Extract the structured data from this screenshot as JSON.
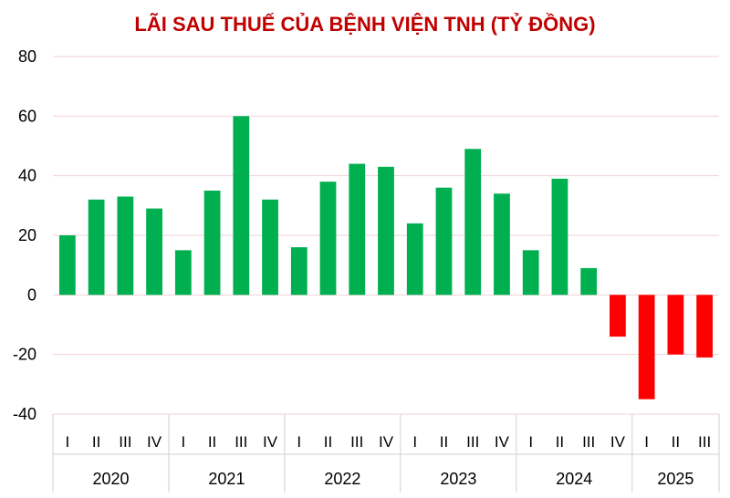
{
  "chart_data": {
    "type": "bar",
    "title": "LÃI SAU THUẾ CỦA BỆNH VIỆN TNH (TỶ ĐỒNG)",
    "categories": [
      {
        "year": "2020",
        "quarter": "I"
      },
      {
        "year": "2020",
        "quarter": "II"
      },
      {
        "year": "2020",
        "quarter": "III"
      },
      {
        "year": "2020",
        "quarter": "IV"
      },
      {
        "year": "2021",
        "quarter": "I"
      },
      {
        "year": "2021",
        "quarter": "II"
      },
      {
        "year": "2021",
        "quarter": "III"
      },
      {
        "year": "2021",
        "quarter": "IV"
      },
      {
        "year": "2022",
        "quarter": "I"
      },
      {
        "year": "2022",
        "quarter": "II"
      },
      {
        "year": "2022",
        "quarter": "III"
      },
      {
        "year": "2022",
        "quarter": "IV"
      },
      {
        "year": "2023",
        "quarter": "I"
      },
      {
        "year": "2023",
        "quarter": "II"
      },
      {
        "year": "2023",
        "quarter": "III"
      },
      {
        "year": "2023",
        "quarter": "IV"
      },
      {
        "year": "2024",
        "quarter": "I"
      },
      {
        "year": "2024",
        "quarter": "II"
      },
      {
        "year": "2024",
        "quarter": "III"
      },
      {
        "year": "2024",
        "quarter": "IV"
      },
      {
        "year": "2025",
        "quarter": "I"
      },
      {
        "year": "2025",
        "quarter": "II"
      },
      {
        "year": "2025",
        "quarter": "III"
      }
    ],
    "years": [
      "2020",
      "2021",
      "2022",
      "2023",
      "2024",
      "2025"
    ],
    "values": [
      20,
      32,
      33,
      29,
      15,
      35,
      60,
      32,
      16,
      38,
      44,
      43,
      24,
      36,
      49,
      34,
      15,
      39,
      9,
      -14,
      -35,
      -20,
      -21
    ],
    "yticks": [
      "80",
      "60",
      "40",
      "20",
      "0",
      "-20",
      "-40"
    ],
    "ylim": [
      -40,
      80
    ],
    "xlabel": "",
    "ylabel": "",
    "grid": true,
    "colors": {
      "title": "#c00000",
      "positive": "#00b050",
      "negative": "#ff0000",
      "grid": "#f2d0d8",
      "axis": "#d0d0d0"
    }
  }
}
